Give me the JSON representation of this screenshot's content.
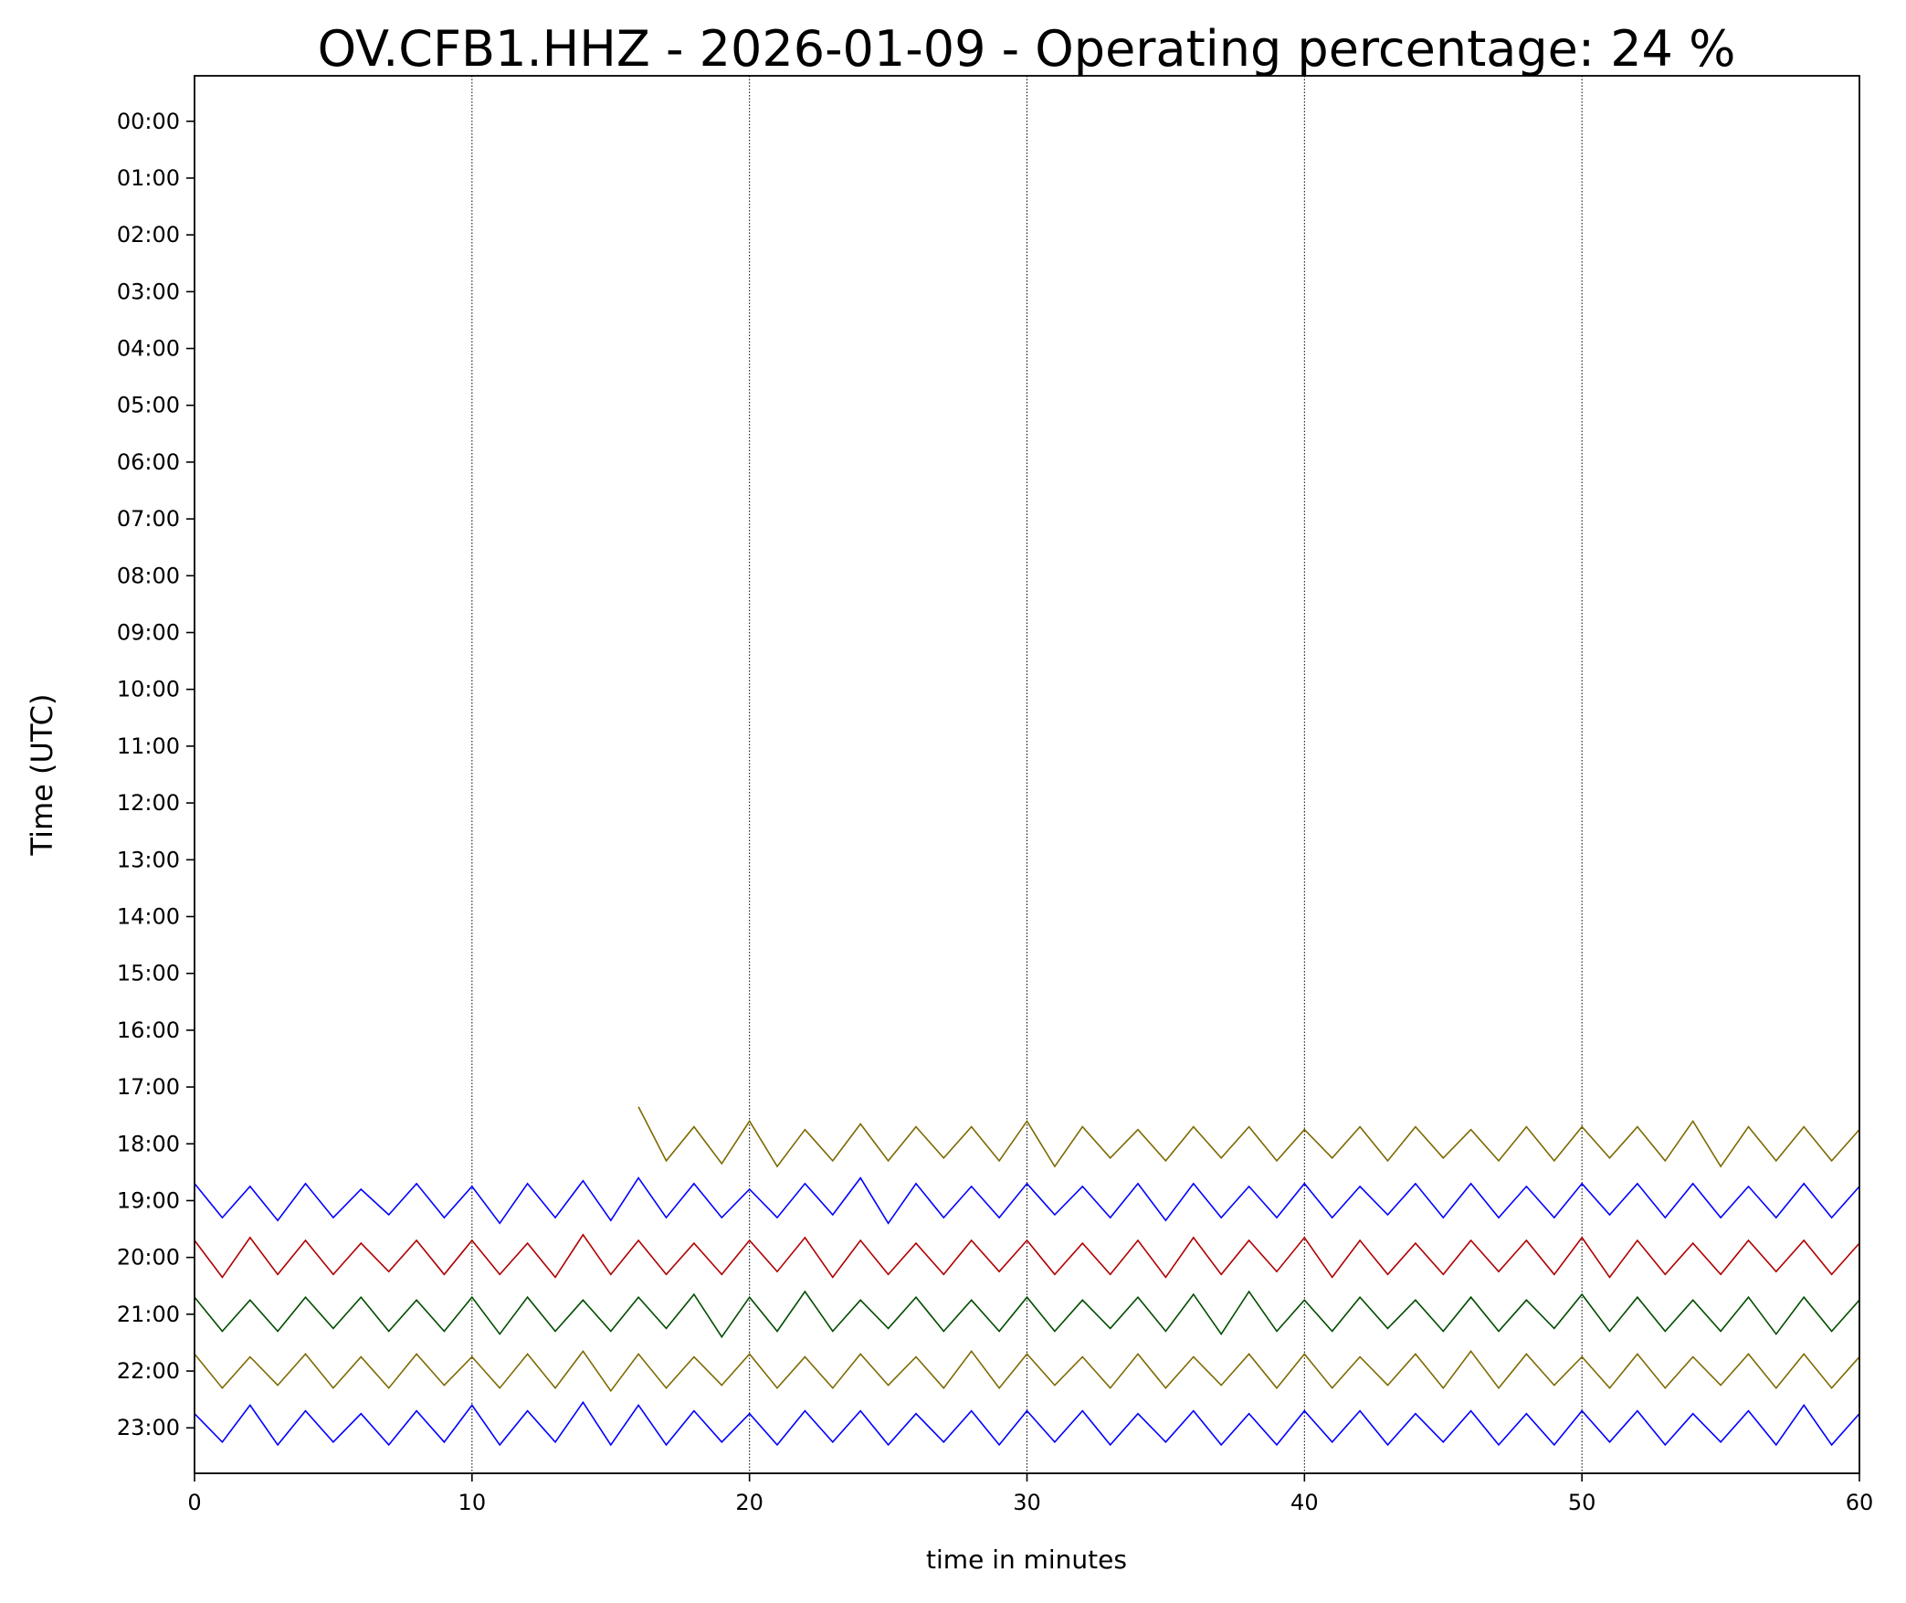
{
  "chart_data": {
    "type": "helicorder",
    "title": "OV.CFB1.HHZ - 2026-01-09 - Operating percentage: 24 %",
    "xlabel": "time in minutes",
    "ylabel": "Time (UTC)",
    "xlim": [
      0,
      60
    ],
    "xticks": [
      0,
      10,
      20,
      30,
      40,
      50,
      60
    ],
    "ylim": [
      -0.8,
      23.8
    ],
    "y_inverted": true,
    "yticks": [
      {
        "value": 0,
        "label": "00:00"
      },
      {
        "value": 1,
        "label": "01:00"
      },
      {
        "value": 2,
        "label": "02:00"
      },
      {
        "value": 3,
        "label": "03:00"
      },
      {
        "value": 4,
        "label": "04:00"
      },
      {
        "value": 5,
        "label": "05:00"
      },
      {
        "value": 6,
        "label": "06:00"
      },
      {
        "value": 7,
        "label": "07:00"
      },
      {
        "value": 8,
        "label": "08:00"
      },
      {
        "value": 9,
        "label": "09:00"
      },
      {
        "value": 10,
        "label": "10:00"
      },
      {
        "value": 11,
        "label": "11:00"
      },
      {
        "value": 12,
        "label": "12:00"
      },
      {
        "value": 13,
        "label": "13:00"
      },
      {
        "value": 14,
        "label": "14:00"
      },
      {
        "value": 15,
        "label": "15:00"
      },
      {
        "value": 16,
        "label": "16:00"
      },
      {
        "value": 17,
        "label": "17:00"
      },
      {
        "value": 18,
        "label": "18:00"
      },
      {
        "value": 19,
        "label": "19:00"
      },
      {
        "value": 20,
        "label": "20:00"
      },
      {
        "value": 21,
        "label": "21:00"
      },
      {
        "value": 22,
        "label": "22:00"
      },
      {
        "value": 23,
        "label": "23:00"
      }
    ],
    "grid": "x",
    "x": [
      0,
      1,
      2,
      3,
      4,
      5,
      6,
      7,
      8,
      9,
      10,
      11,
      12,
      13,
      14,
      15,
      16,
      17,
      18,
      19,
      20,
      21,
      22,
      23,
      24,
      25,
      26,
      27,
      28,
      29,
      30,
      31,
      32,
      33,
      34,
      35,
      36,
      37,
      38,
      39,
      40,
      41,
      42,
      43,
      44,
      45,
      46,
      47,
      48,
      49,
      50,
      51,
      52,
      53,
      54,
      55,
      56,
      57,
      58,
      59,
      60
    ],
    "series": [
      {
        "color": "#7d6a00",
        "values": [
          null,
          null,
          null,
          null,
          null,
          null,
          null,
          null,
          null,
          null,
          null,
          null,
          null,
          null,
          null,
          null,
          17.35,
          18.3,
          17.7,
          18.35,
          17.6,
          18.4,
          17.75,
          18.3,
          17.65,
          18.3,
          17.7,
          18.25,
          17.7,
          18.3,
          17.6,
          18.4,
          17.7,
          18.25,
          17.75,
          18.3,
          17.7,
          18.25,
          17.7,
          18.3,
          17.75,
          18.25,
          17.7,
          18.3,
          17.7,
          18.25,
          17.75,
          18.3,
          17.7,
          18.3,
          17.7,
          18.25,
          17.7,
          18.3,
          17.6,
          18.4,
          17.7,
          18.3,
          17.7,
          18.3,
          17.75
        ]
      },
      {
        "color": "#0000ff",
        "values": [
          18.7,
          19.3,
          18.75,
          19.35,
          18.7,
          19.3,
          18.8,
          19.25,
          18.7,
          19.3,
          18.75,
          19.4,
          18.7,
          19.3,
          18.65,
          19.35,
          18.6,
          19.3,
          18.7,
          19.3,
          18.8,
          19.3,
          18.7,
          19.25,
          18.6,
          19.4,
          18.7,
          19.3,
          18.75,
          19.3,
          18.7,
          19.25,
          18.75,
          19.3,
          18.7,
          19.35,
          18.7,
          19.3,
          18.75,
          19.3,
          18.7,
          19.3,
          18.75,
          19.25,
          18.7,
          19.3,
          18.7,
          19.3,
          18.75,
          19.3,
          18.7,
          19.25,
          18.7,
          19.3,
          18.7,
          19.3,
          18.75,
          19.3,
          18.7,
          19.3,
          18.75
        ]
      },
      {
        "color": "#b00000",
        "values": [
          19.7,
          20.35,
          19.65,
          20.3,
          19.7,
          20.3,
          19.75,
          20.25,
          19.7,
          20.3,
          19.7,
          20.3,
          19.75,
          20.35,
          19.6,
          20.3,
          19.7,
          20.3,
          19.75,
          20.3,
          19.7,
          20.25,
          19.65,
          20.35,
          19.7,
          20.3,
          19.75,
          20.3,
          19.7,
          20.25,
          19.7,
          20.3,
          19.75,
          20.3,
          19.7,
          20.35,
          19.65,
          20.3,
          19.7,
          20.25,
          19.65,
          20.35,
          19.7,
          20.3,
          19.75,
          20.3,
          19.7,
          20.25,
          19.7,
          20.3,
          19.65,
          20.35,
          19.7,
          20.3,
          19.75,
          20.3,
          19.7,
          20.25,
          19.7,
          20.3,
          19.75
        ]
      },
      {
        "color": "#004d00",
        "values": [
          20.7,
          21.3,
          20.75,
          21.3,
          20.7,
          21.25,
          20.7,
          21.3,
          20.75,
          21.3,
          20.7,
          21.35,
          20.7,
          21.3,
          20.75,
          21.3,
          20.7,
          21.25,
          20.65,
          21.4,
          20.7,
          21.3,
          20.6,
          21.3,
          20.75,
          21.25,
          20.7,
          21.3,
          20.75,
          21.3,
          20.7,
          21.3,
          20.75,
          21.25,
          20.7,
          21.3,
          20.65,
          21.35,
          20.6,
          21.3,
          20.75,
          21.3,
          20.7,
          21.25,
          20.75,
          21.3,
          20.7,
          21.3,
          20.75,
          21.25,
          20.65,
          21.3,
          20.7,
          21.3,
          20.75,
          21.3,
          20.7,
          21.35,
          20.7,
          21.3,
          20.75
        ]
      },
      {
        "color": "#7d6a00",
        "values": [
          21.7,
          22.3,
          21.75,
          22.25,
          21.7,
          22.3,
          21.75,
          22.3,
          21.7,
          22.25,
          21.75,
          22.3,
          21.7,
          22.3,
          21.65,
          22.35,
          21.7,
          22.3,
          21.75,
          22.25,
          21.7,
          22.3,
          21.75,
          22.3,
          21.7,
          22.25,
          21.75,
          22.3,
          21.65,
          22.3,
          21.7,
          22.25,
          21.75,
          22.3,
          21.7,
          22.3,
          21.75,
          22.25,
          21.7,
          22.3,
          21.7,
          22.3,
          21.75,
          22.25,
          21.7,
          22.3,
          21.65,
          22.3,
          21.7,
          22.25,
          21.75,
          22.3,
          21.7,
          22.3,
          21.75,
          22.25,
          21.7,
          22.3,
          21.7,
          22.3,
          21.75
        ]
      },
      {
        "color": "#0000ff",
        "values": [
          22.75,
          23.25,
          22.6,
          23.3,
          22.7,
          23.25,
          22.75,
          23.3,
          22.7,
          23.25,
          22.6,
          23.3,
          22.7,
          23.25,
          22.55,
          23.3,
          22.6,
          23.3,
          22.7,
          23.25,
          22.75,
          23.3,
          22.7,
          23.25,
          22.7,
          23.3,
          22.75,
          23.25,
          22.7,
          23.3,
          22.7,
          23.25,
          22.7,
          23.3,
          22.75,
          23.25,
          22.7,
          23.3,
          22.75,
          23.3,
          22.7,
          23.25,
          22.7,
          23.3,
          22.75,
          23.25,
          22.7,
          23.3,
          22.75,
          23.3,
          22.7,
          23.25,
          22.7,
          23.3,
          22.75,
          23.25,
          22.7,
          23.3,
          22.6,
          23.3,
          22.75
        ]
      }
    ]
  }
}
